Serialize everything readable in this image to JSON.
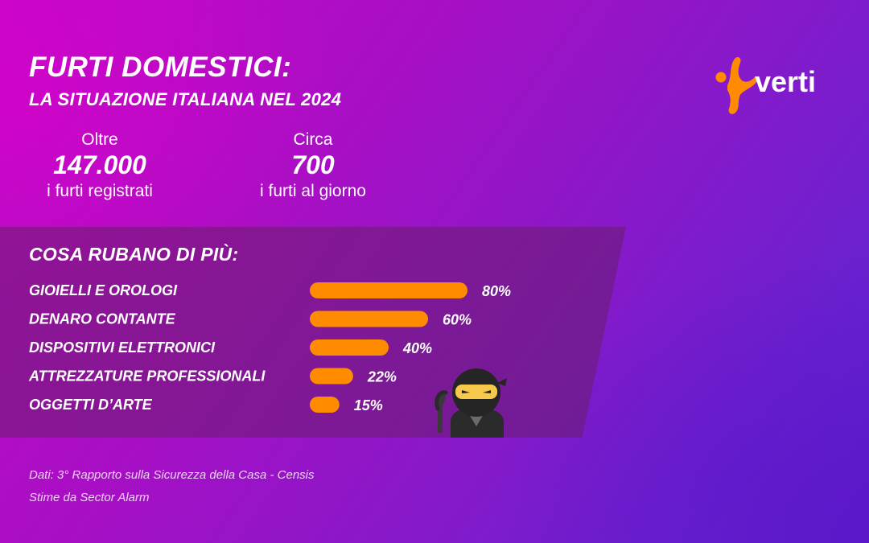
{
  "header": {
    "title": "FURTI DOMESTICI:",
    "subtitle": "LA SITUAZIONE ITALIANA NEL 2024"
  },
  "stats": [
    {
      "prefix": "Oltre",
      "value": "147.000",
      "suffix": "i furti registrati"
    },
    {
      "prefix": "Circa",
      "value": "700",
      "suffix": "i furti al giorno"
    }
  ],
  "brand": {
    "name": "verti",
    "color": "#ff8c00",
    "icon": "verti-star-icon"
  },
  "colors": {
    "bar": "#ff8c00",
    "panel": "#6a1e6e"
  },
  "chart_data": {
    "type": "bar",
    "orientation": "horizontal",
    "title": "COSA RUBANO DI PIÙ:",
    "categories": [
      "GIOIELLI E OROLOGI",
      "DENARO CONTANTE",
      "DISPOSITIVI ELETTRONICI",
      "ATTREZZATURE PROFESSIONALI",
      "OGGETTI D’ARTE"
    ],
    "values": [
      80,
      60,
      40,
      22,
      15
    ],
    "value_labels": [
      "80%",
      "60%",
      "40%",
      "22%",
      "15%"
    ],
    "unit": "%",
    "xlim": [
      0,
      100
    ],
    "grid": false,
    "legend": "none"
  },
  "footer": {
    "source_line1": "Dati: 3° Rapporto sulla Sicurezza della Casa - Censis",
    "source_line2": "Stime da Sector Alarm"
  }
}
